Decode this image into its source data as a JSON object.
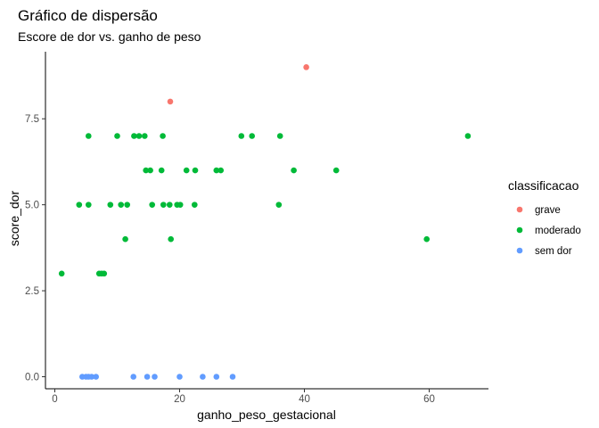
{
  "chart_data": {
    "type": "scatter",
    "title": "Gráfico de dispersão",
    "subtitle": "Escore de dor vs. ganho de peso",
    "xlabel": "ganho_peso_gestacional",
    "ylabel": "score_dor",
    "xlim": [
      -1.5,
      69.5
    ],
    "ylim": [
      -0.35,
      9.45
    ],
    "x_ticks": [
      0,
      20,
      40,
      60
    ],
    "x_tick_labels": [
      "0",
      "20",
      "40",
      "60"
    ],
    "y_ticks": [
      0,
      2.5,
      5,
      7.5
    ],
    "y_tick_labels": [
      "0.0",
      "2.5",
      "5.0",
      "7.5"
    ],
    "grid": false,
    "legend": {
      "title": "classificacao",
      "placement": "right",
      "entries": [
        "grave",
        "moderado",
        "sem dor"
      ]
    },
    "colors": {
      "grave": "#F8766D",
      "moderado": "#00BA38",
      "sem dor": "#619CFF"
    },
    "series": [
      {
        "name": "grave",
        "points": [
          [
            18.5,
            8
          ],
          [
            40.3,
            9
          ]
        ]
      },
      {
        "name": "moderado",
        "points": [
          [
            1.1,
            3
          ],
          [
            7.1,
            3
          ],
          [
            7.5,
            3
          ],
          [
            7.9,
            3
          ],
          [
            3.9,
            5
          ],
          [
            5.4,
            5
          ],
          [
            8.9,
            5
          ],
          [
            10.6,
            5
          ],
          [
            11.6,
            5
          ],
          [
            15.6,
            5
          ],
          [
            17.4,
            5
          ],
          [
            18.4,
            5
          ],
          [
            19.6,
            5
          ],
          [
            20.1,
            5
          ],
          [
            22.4,
            5
          ],
          [
            35.9,
            5
          ],
          [
            11.3,
            4
          ],
          [
            18.6,
            4
          ],
          [
            59.6,
            4
          ],
          [
            14.6,
            6
          ],
          [
            15.3,
            6
          ],
          [
            17.1,
            6
          ],
          [
            21.1,
            6
          ],
          [
            22.5,
            6
          ],
          [
            25.9,
            6
          ],
          [
            26.6,
            6
          ],
          [
            38.3,
            6
          ],
          [
            45.1,
            6
          ],
          [
            5.4,
            7
          ],
          [
            10.0,
            7
          ],
          [
            12.7,
            7
          ],
          [
            13.5,
            7
          ],
          [
            14.4,
            7
          ],
          [
            17.3,
            7
          ],
          [
            29.9,
            7
          ],
          [
            31.6,
            7
          ],
          [
            36.1,
            7
          ],
          [
            66.2,
            7
          ]
        ]
      },
      {
        "name": "sem dor",
        "points": [
          [
            4.4,
            0
          ],
          [
            5.0,
            0
          ],
          [
            5.4,
            0
          ],
          [
            5.9,
            0
          ],
          [
            6.6,
            0
          ],
          [
            12.6,
            0
          ],
          [
            14.8,
            0
          ],
          [
            16.0,
            0
          ],
          [
            20.0,
            0
          ],
          [
            23.7,
            0
          ],
          [
            25.9,
            0
          ],
          [
            28.5,
            0
          ]
        ]
      }
    ]
  }
}
